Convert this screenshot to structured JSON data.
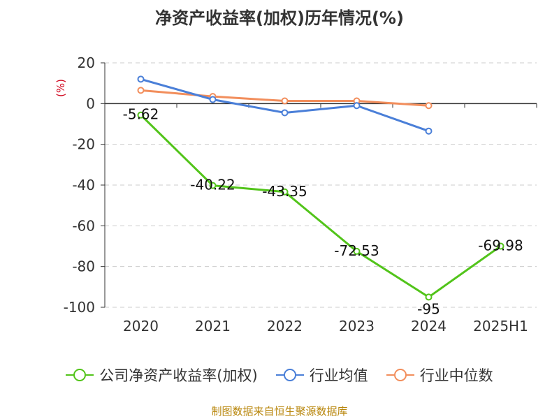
{
  "chart_data": {
    "type": "line",
    "title": "净资产收益率(加权)历年情况(%)",
    "ylabel": "(%)",
    "xlabel": "",
    "categories": [
      "2020",
      "2021",
      "2022",
      "2023",
      "2024",
      "2025H1"
    ],
    "y_ticks": [
      "20",
      "0",
      "-20",
      "-40",
      "-60",
      "-80",
      "-100"
    ],
    "ylim": [
      -100,
      20
    ],
    "grid": true,
    "legend_position": "bottom",
    "series": [
      {
        "name": "公司净资产收益率(加权)",
        "color": "#52c41a",
        "values": [
          -5.62,
          -40.22,
          -43.35,
          -72.53,
          -95,
          -69.98
        ],
        "labels": [
          "-5.62",
          "-40.22",
          "-43.35",
          "-72.53",
          "-95",
          "-69.98"
        ]
      },
      {
        "name": "行业均值",
        "color": "#4a7fd8",
        "values": [
          12,
          2,
          -4.5,
          -1,
          -13.5,
          null
        ]
      },
      {
        "name": "行业中位数",
        "color": "#f28e5c",
        "values": [
          6.5,
          3.5,
          1.3,
          1.3,
          -1,
          null
        ]
      }
    ]
  },
  "legend": {
    "items": [
      {
        "label": "公司净资产收益率(加权)",
        "color": "#52c41a"
      },
      {
        "label": "行业均值",
        "color": "#4a7fd8"
      },
      {
        "label": "行业中位数",
        "color": "#f28e5c"
      }
    ]
  },
  "source": "制图数据来自恒生聚源数据库"
}
